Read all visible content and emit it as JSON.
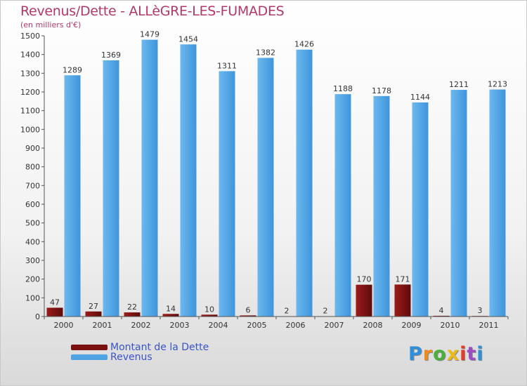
{
  "title": "Revenus/Dette - ALLèGRE-LES-FUMADES",
  "subtitle": "(en milliers d'€)",
  "colors": {
    "dette": "#7a1010",
    "revenus": "#4fa3e3",
    "title": "#b0386a",
    "legend_text": "#3a53c9"
  },
  "chart_data": {
    "type": "bar",
    "categories": [
      "2000",
      "2001",
      "2002",
      "2003",
      "2004",
      "2005",
      "2006",
      "2007",
      "2008",
      "2009",
      "2010",
      "2011"
    ],
    "series": [
      {
        "name": "Montant de la Dette",
        "values": [
          47,
          27,
          22,
          14,
          10,
          6,
          2,
          2,
          170,
          171,
          4,
          3
        ]
      },
      {
        "name": "Revenus",
        "values": [
          1289,
          1369,
          1479,
          1454,
          1311,
          1382,
          1426,
          1188,
          1178,
          1144,
          1211,
          1213
        ]
      }
    ],
    "ylim": [
      0,
      1500
    ],
    "yticks": [
      0,
      100,
      200,
      300,
      400,
      500,
      600,
      700,
      800,
      900,
      1000,
      1100,
      1200,
      1300,
      1400,
      1500
    ],
    "grid": false,
    "legend_position": "bottom-left",
    "data_labels": true
  },
  "legend": {
    "items": [
      {
        "label": "Montant de la Dette"
      },
      {
        "label": "Revenus"
      }
    ]
  },
  "logo": {
    "letters": [
      "P",
      "r",
      "o",
      "x",
      "i",
      "t",
      "i"
    ],
    "letter_colors": [
      "#2f8fd8",
      "#f08a1c",
      "#4cae3c",
      "#e8ba1a",
      "#e23c2c",
      "#9a4cc0",
      "#2f8fd8"
    ]
  }
}
